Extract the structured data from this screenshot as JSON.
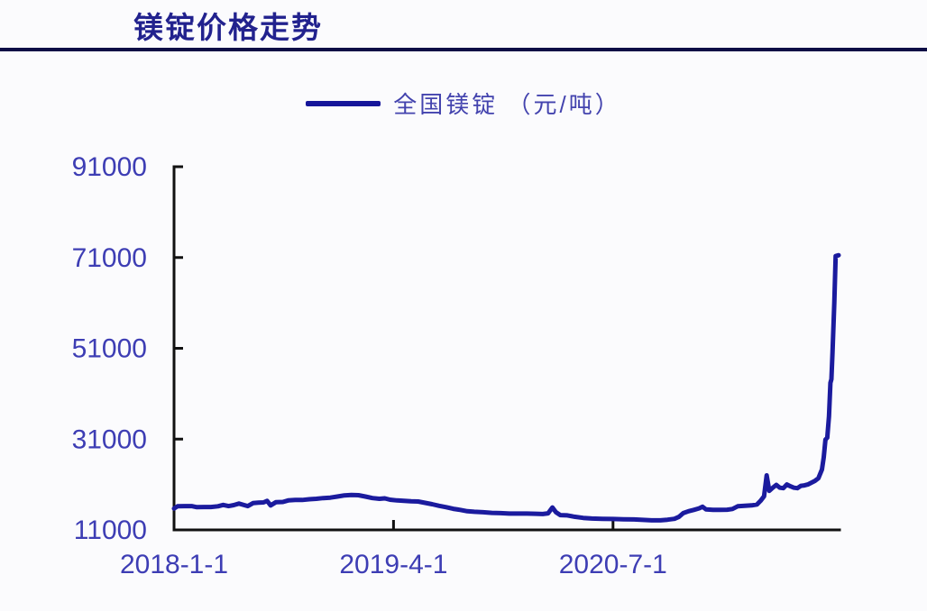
{
  "page": {
    "title": "镁锭价格走势"
  },
  "legend": {
    "label": "全国镁锭 （元/吨）"
  },
  "colors": {
    "title": "#22228e",
    "divider": "#0d0d45",
    "axis": "#111111",
    "tick_label": "#3d3db4",
    "line": "#1b1b9e",
    "background": "#fbfbfd"
  },
  "chart_data": {
    "type": "line",
    "title": "镁锭价格走势",
    "legend_position": "top-center",
    "grid": false,
    "series_name": "全国镁锭 （元/吨）",
    "unit": "元/吨",
    "x_range": [
      2018.0,
      2021.79
    ],
    "y_range": [
      11000,
      91000
    ],
    "y_ticks": [
      {
        "label": "11000",
        "value": 11000
      },
      {
        "label": "31000",
        "value": 31000
      },
      {
        "label": "51000",
        "value": 51000
      },
      {
        "label": "71000",
        "value": 71000
      },
      {
        "label": "91000",
        "value": 91000
      }
    ],
    "x_ticks": [
      {
        "label": "2018-1-1",
        "value": 2018.0
      },
      {
        "label": "2019-4-1",
        "value": 2019.25
      },
      {
        "label": "2020-7-1",
        "value": 2020.5
      }
    ],
    "series": [
      {
        "name": "全国镁锭 （元/吨）",
        "color": "#1b1b9e",
        "points": [
          [
            2018.0,
            15700
          ],
          [
            2018.02,
            16200
          ],
          [
            2018.06,
            16250
          ],
          [
            2018.1,
            16250
          ],
          [
            2018.13,
            16000
          ],
          [
            2018.17,
            16050
          ],
          [
            2018.21,
            16050
          ],
          [
            2018.25,
            16200
          ],
          [
            2018.28,
            16500
          ],
          [
            2018.31,
            16250
          ],
          [
            2018.34,
            16450
          ],
          [
            2018.37,
            16800
          ],
          [
            2018.4,
            16450
          ],
          [
            2018.42,
            16250
          ],
          [
            2018.45,
            16900
          ],
          [
            2018.48,
            17000
          ],
          [
            2018.51,
            17050
          ],
          [
            2018.53,
            17400
          ],
          [
            2018.55,
            16400
          ],
          [
            2018.58,
            17100
          ],
          [
            2018.62,
            17150
          ],
          [
            2018.65,
            17500
          ],
          [
            2018.69,
            17600
          ],
          [
            2018.73,
            17600
          ],
          [
            2018.77,
            17750
          ],
          [
            2018.81,
            17850
          ],
          [
            2018.85,
            18000
          ],
          [
            2018.89,
            18100
          ],
          [
            2018.93,
            18350
          ],
          [
            2018.97,
            18600
          ],
          [
            2019.01,
            18700
          ],
          [
            2019.05,
            18650
          ],
          [
            2019.09,
            18350
          ],
          [
            2019.13,
            18000
          ],
          [
            2019.17,
            17850
          ],
          [
            2019.2,
            17950
          ],
          [
            2019.23,
            17650
          ],
          [
            2019.27,
            17500
          ],
          [
            2019.31,
            17400
          ],
          [
            2019.35,
            17300
          ],
          [
            2019.39,
            17250
          ],
          [
            2019.43,
            16950
          ],
          [
            2019.47,
            16650
          ],
          [
            2019.51,
            16300
          ],
          [
            2019.55,
            16000
          ],
          [
            2019.59,
            15650
          ],
          [
            2019.63,
            15400
          ],
          [
            2019.67,
            15100
          ],
          [
            2019.71,
            15000
          ],
          [
            2019.76,
            14900
          ],
          [
            2019.81,
            14750
          ],
          [
            2019.86,
            14700
          ],
          [
            2019.91,
            14600
          ],
          [
            2019.96,
            14600
          ],
          [
            2020.01,
            14600
          ],
          [
            2020.06,
            14550
          ],
          [
            2020.1,
            14500
          ],
          [
            2020.13,
            14650
          ],
          [
            2020.155,
            15950
          ],
          [
            2020.175,
            14900
          ],
          [
            2020.2,
            14250
          ],
          [
            2020.24,
            14200
          ],
          [
            2020.28,
            13900
          ],
          [
            2020.33,
            13650
          ],
          [
            2020.38,
            13500
          ],
          [
            2020.44,
            13450
          ],
          [
            2020.5,
            13400
          ],
          [
            2020.56,
            13350
          ],
          [
            2020.62,
            13300
          ],
          [
            2020.67,
            13200
          ],
          [
            2020.72,
            13100
          ],
          [
            2020.77,
            13100
          ],
          [
            2020.81,
            13250
          ],
          [
            2020.85,
            13450
          ],
          [
            2020.875,
            13850
          ],
          [
            2020.9,
            14700
          ],
          [
            2020.93,
            15100
          ],
          [
            2020.96,
            15400
          ],
          [
            2020.99,
            15750
          ],
          [
            2021.01,
            16100
          ],
          [
            2021.03,
            15500
          ],
          [
            2021.07,
            15400
          ],
          [
            2021.11,
            15400
          ],
          [
            2021.15,
            15450
          ],
          [
            2021.18,
            15600
          ],
          [
            2021.21,
            16200
          ],
          [
            2021.25,
            16300
          ],
          [
            2021.29,
            16400
          ],
          [
            2021.32,
            16600
          ],
          [
            2021.34,
            17400
          ],
          [
            2021.36,
            18400
          ],
          [
            2021.375,
            23000
          ],
          [
            2021.39,
            19600
          ],
          [
            2021.41,
            20300
          ],
          [
            2021.43,
            20900
          ],
          [
            2021.45,
            20300
          ],
          [
            2021.47,
            20200
          ],
          [
            2021.49,
            21000
          ],
          [
            2021.51,
            20600
          ],
          [
            2021.53,
            20300
          ],
          [
            2021.55,
            20200
          ],
          [
            2021.57,
            20700
          ],
          [
            2021.59,
            20800
          ],
          [
            2021.61,
            21000
          ],
          [
            2021.63,
            21400
          ],
          [
            2021.65,
            21800
          ],
          [
            2021.67,
            22400
          ],
          [
            2021.69,
            24300
          ],
          [
            2021.7,
            27000
          ],
          [
            2021.71,
            30900
          ],
          [
            2021.72,
            31300
          ],
          [
            2021.73,
            36000
          ],
          [
            2021.738,
            43400
          ],
          [
            2021.744,
            44200
          ],
          [
            2021.75,
            50000
          ],
          [
            2021.76,
            61000
          ],
          [
            2021.768,
            71300
          ],
          [
            2021.785,
            71500
          ]
        ]
      }
    ]
  }
}
